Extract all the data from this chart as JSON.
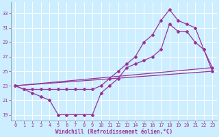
{
  "xlabel": "Windchill (Refroidissement éolien,°C)",
  "bg_color": "#cceeff",
  "line_color": "#993399",
  "grid_color": "#ffffff",
  "x_ticks": [
    0,
    1,
    2,
    3,
    4,
    5,
    6,
    7,
    8,
    9,
    10,
    11,
    12,
    13,
    14,
    15,
    16,
    17,
    18,
    19,
    20,
    21,
    22,
    23
  ],
  "y_ticks": [
    19,
    21,
    23,
    25,
    27,
    29,
    31,
    33
  ],
  "xlim": [
    -0.5,
    23.5
  ],
  "ylim": [
    18.2,
    34.5
  ],
  "series": [
    {
      "x": [
        0,
        1,
        2,
        3,
        4,
        5,
        6,
        7,
        8,
        9,
        10,
        11,
        12,
        13,
        14,
        15,
        16,
        17,
        18,
        19,
        20,
        21,
        22,
        23
      ],
      "y": [
        23,
        22.5,
        22,
        21.5,
        21,
        19,
        19,
        19,
        19,
        19,
        22,
        23,
        24,
        25.5,
        26,
        26.5,
        27,
        28,
        31.5,
        30.5,
        30.5,
        29,
        28,
        25.5
      ],
      "marker": true
    },
    {
      "x": [
        0,
        1,
        2,
        3,
        4,
        5,
        6,
        7,
        8,
        9,
        10,
        11,
        12,
        13,
        14,
        15,
        16,
        17,
        18,
        19,
        20,
        21,
        22,
        23
      ],
      "y": [
        23,
        22.5,
        22.5,
        22.5,
        22.5,
        22.5,
        22.5,
        22.5,
        22.5,
        22.5,
        23,
        24,
        25,
        26,
        27,
        29,
        30,
        32,
        33.5,
        32,
        31.5,
        31,
        28,
        25
      ],
      "marker": true
    },
    {
      "x": [
        0,
        23
      ],
      "y": [
        23,
        25.5
      ],
      "marker": false
    },
    {
      "x": [
        0,
        23
      ],
      "y": [
        23,
        25
      ],
      "marker": false
    }
  ]
}
